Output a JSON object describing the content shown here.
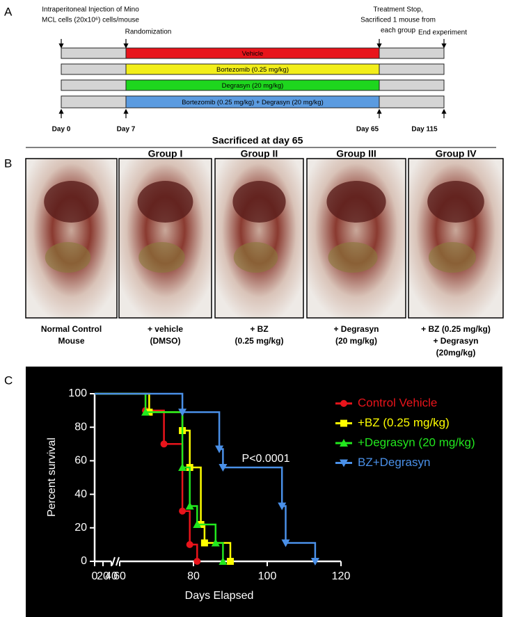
{
  "panel_a": {
    "label": "A",
    "injection": [
      "Intraperitoneal Injection of Mino",
      "MCL cells (20x10⁶) cells/mouse"
    ],
    "randomization": "Randomization",
    "treatment_stop": [
      "Treatment Stop,",
      "Sacrificed 1 mouse from",
      "each group"
    ],
    "end": "End experiment",
    "arms": [
      {
        "label": "Vehicle",
        "color": "#e8141b"
      },
      {
        "label": "Bortezomib (0.25 mg/kg)",
        "color": "#f2ee1a"
      },
      {
        "label": "Degrasyn (20 mg/kg)",
        "color": "#1ed61e"
      },
      {
        "label": "Bortezomib (0.25 mg/kg) + Degrasyn (20 mg/kg)",
        "color": "#5b9be0"
      }
    ],
    "days": [
      "Day 0",
      "Day 7",
      "Day 65",
      "Day 115"
    ]
  },
  "panel_b": {
    "label": "B",
    "title": "Sacrificed at day 65",
    "groups": [
      "Group I",
      "Group II",
      "Group III",
      "Group IV"
    ],
    "captions": [
      [
        "Normal Control",
        "Mouse"
      ],
      [
        "+ vehicle",
        "(DMSO)"
      ],
      [
        "+ BZ",
        "(0.25 mg/kg)"
      ],
      [
        "+ Degrasyn",
        "(20 mg/kg)"
      ],
      [
        "+ BZ (0.25 mg/kg)",
        "+ Degrasyn",
        "(20mg/kg)"
      ]
    ]
  },
  "chart_data": {
    "type": "step",
    "panel_label": "C",
    "xlabel": "Days Elapsed",
    "ylabel": "Percent survival",
    "xlim": [
      0,
      120
    ],
    "xbreak": [
      40,
      60
    ],
    "xticks": [
      0,
      20,
      40,
      60,
      80,
      100,
      120
    ],
    "ylim": [
      0,
      100
    ],
    "yticks": [
      0,
      20,
      40,
      60,
      80,
      100
    ],
    "annotation": "P<0.0001",
    "series": [
      {
        "name": "Control Vehicle",
        "color": "#e8141b",
        "marker": "circle",
        "x": [
          0,
          67,
          72,
          77,
          79,
          81
        ],
        "values": [
          100,
          90,
          70,
          30,
          10,
          0
        ]
      },
      {
        "name": "+BZ (0.25 mg/kg)",
        "color": "#ffff00",
        "marker": "square",
        "x": [
          0,
          68,
          77,
          79,
          82,
          83,
          90
        ],
        "values": [
          100,
          89,
          78,
          56,
          22,
          11,
          0
        ]
      },
      {
        "name": "+Degrasyn (20 mg/kg)",
        "color": "#22e81e",
        "marker": "triangle-up",
        "x": [
          0,
          67,
          77,
          79,
          81,
          86,
          88
        ],
        "values": [
          100,
          89,
          56,
          33,
          22,
          11,
          0
        ]
      },
      {
        "name": "BZ+Degrasyn",
        "color": "#4a90e8",
        "marker": "triangle-down",
        "x": [
          0,
          77,
          87,
          88,
          104,
          105,
          113
        ],
        "values": [
          100,
          89,
          67,
          56,
          33,
          11,
          0
        ]
      }
    ]
  }
}
